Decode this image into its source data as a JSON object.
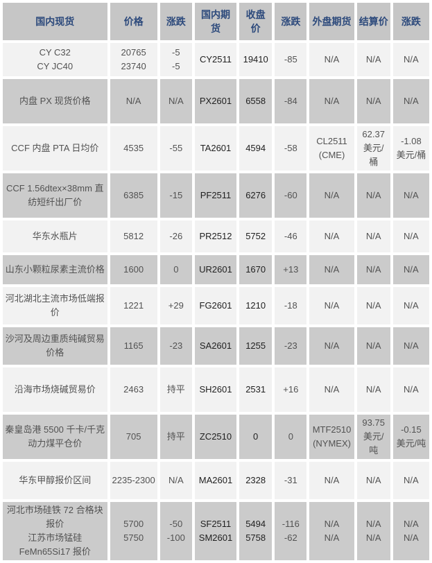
{
  "colors": {
    "header_bg": "#c6c6c6",
    "header_text": "#2d4a7c",
    "row_gray_bg": "#cbcbcb",
    "row_light_bg": "#f2f2f2",
    "body_text": "#525252",
    "emphasis_text": "#1f1f1f",
    "page_bg": "#ffffff"
  },
  "chart_data": {
    "type": "table",
    "columns": [
      "国内现货",
      "价格",
      "涨跌",
      "国内期货",
      "收盘价",
      "涨跌",
      "外盘期货",
      "结算价",
      "涨跌"
    ],
    "rows": [
      [
        "CY C32\nCY JC40",
        "20765\n23740",
        "-5\n-5",
        "CY2511",
        "19410",
        "-85",
        "N/A",
        "N/A",
        "N/A"
      ],
      [
        "内盘 PX 现货价格",
        "N/A",
        "N/A",
        "PX2601",
        "6558",
        "-84",
        "N/A",
        "N/A",
        "N/A"
      ],
      [
        "CCF 内盘 PTA 日均价",
        "4535",
        "-55",
        "TA2601",
        "4594",
        "-58",
        "CL2511\n(CME)",
        "62.37\n美元/桶",
        "-1.08\n美元/桶"
      ],
      [
        "CCF 1.56dtex×38mm 直纺短纤出厂价",
        "6385",
        "-15",
        "PF2511",
        "6276",
        "-60",
        "N/A",
        "N/A",
        "N/A"
      ],
      [
        "华东水瓶片",
        "5812",
        "-26",
        "PR2512",
        "5752",
        "-46",
        "N/A",
        "N/A",
        "N/A"
      ],
      [
        "山东小颗粒尿素主流价格",
        "1600",
        "0",
        "UR2601",
        "1670",
        "+13",
        "N/A",
        "N/A",
        "N/A"
      ],
      [
        "河北湖北主流市场低端报价",
        "1221",
        "+29",
        "FG2601",
        "1210",
        "-18",
        "N/A",
        "N/A",
        "N/A"
      ],
      [
        "沙河及周边重质纯碱贸易价格",
        "1165",
        "-23",
        "SA2601",
        "1255",
        "-23",
        "N/A",
        "N/A",
        "N/A"
      ],
      [
        "沿海市场烧碱贸易价",
        "2463",
        "持平",
        "SH2601",
        "2531",
        "+16",
        "N/A",
        "N/A",
        "N/A"
      ],
      [
        "秦皇岛港 5500 千卡/千克动力煤平仓价",
        "705",
        "持平",
        "ZC2510",
        "0",
        "0",
        "MTF2510\n(NYMEX)",
        "93.75\n美元/吨",
        "-0.15\n美元/吨"
      ],
      [
        "华东甲醇报价区间",
        "2235-2300",
        "N/A",
        "MA2601",
        "2328",
        "-31",
        "N/A",
        "N/A",
        "N/A"
      ],
      [
        "河北市场硅铁 72 合格块报价\n江苏市场锰硅 FeMn65Si17 报价",
        "5700\n5750",
        "-50\n-100",
        "SF2511\nSM2601",
        "5494\n5758",
        "-116\n-62",
        "N/A\nN/A",
        "N/A\nN/A",
        "N/A\nN/A"
      ]
    ]
  }
}
